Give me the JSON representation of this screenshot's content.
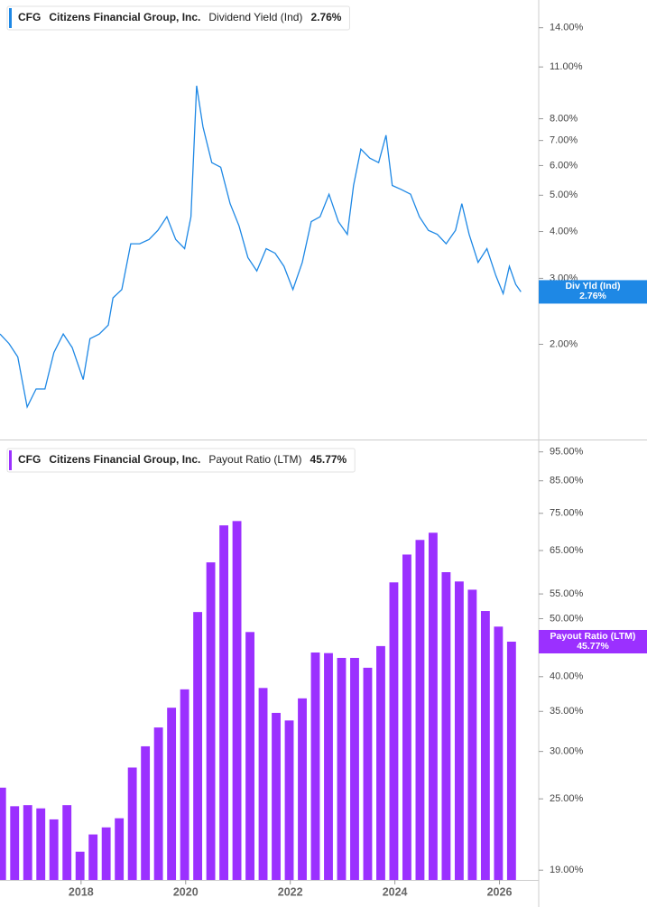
{
  "chart_data": [
    {
      "type": "line",
      "ticker": "CFG",
      "company": "Citizens Financial Group, Inc.",
      "log_scale": true,
      "series": [
        {
          "name": "Dividend Yield (Ind)",
          "short_name": "Div Yld (Ind)",
          "color": "#1e88e5",
          "x": [
            2016.45,
            2016.62,
            2016.79,
            2016.97,
            2017.14,
            2017.31,
            2017.48,
            2017.66,
            2017.83,
            2018.04,
            2018.17,
            2018.35,
            2018.52,
            2018.61,
            2018.78,
            2018.95,
            2019.12,
            2019.3,
            2019.47,
            2019.64,
            2019.81,
            2019.98,
            2020.1,
            2020.21,
            2020.33,
            2020.5,
            2020.67,
            2020.85,
            2021.02,
            2021.19,
            2021.36,
            2021.54,
            2021.71,
            2021.88,
            2022.05,
            2022.23,
            2022.4,
            2022.57,
            2022.74,
            2022.92,
            2023.09,
            2023.21,
            2023.35,
            2023.52,
            2023.69,
            2023.83,
            2023.95,
            2024.12,
            2024.3,
            2024.47,
            2024.64,
            2024.81,
            2024.98,
            2025.16,
            2025.28,
            2025.42,
            2025.59,
            2025.76,
            2025.93,
            2026.07,
            2026.19,
            2026.31,
            2026.41
          ],
          "values": [
            2.13,
            2.01,
            1.85,
            1.36,
            1.52,
            1.52,
            1.9,
            2.13,
            1.96,
            1.61,
            2.07,
            2.13,
            2.25,
            2.66,
            2.8,
            3.71,
            3.71,
            3.81,
            4.03,
            4.38,
            3.81,
            3.6,
            4.38,
            9.8,
            7.62,
            6.11,
            5.94,
            4.75,
            4.14,
            3.41,
            3.14,
            3.6,
            3.5,
            3.23,
            2.8,
            3.31,
            4.25,
            4.38,
            5.03,
            4.25,
            3.93,
            5.31,
            6.64,
            6.28,
            6.11,
            7.23,
            5.31,
            5.18,
            5.03,
            4.38,
            4.03,
            3.93,
            3.71,
            4.03,
            4.75,
            3.93,
            3.31,
            3.6,
            3.05,
            2.73,
            3.23,
            2.89,
            2.76
          ],
          "last_label": "2.76%"
        }
      ],
      "xlim": [
        2016.45,
        2026.75
      ],
      "ylim": [
        1.12,
        16.6
      ],
      "yticks": [
        {
          "value": 2,
          "label": "2.00%"
        },
        {
          "value": 3,
          "label": "3.00%"
        },
        {
          "value": 4,
          "label": "4.00%"
        },
        {
          "value": 5,
          "label": "5.00%"
        },
        {
          "value": 6,
          "label": "6.00%"
        },
        {
          "value": 7,
          "label": "7.00%"
        },
        {
          "value": 8,
          "label": "8.00%"
        },
        {
          "value": 11,
          "label": "11.00%"
        },
        {
          "value": 14,
          "label": "14.00%"
        }
      ]
    },
    {
      "type": "bar",
      "ticker": "CFG",
      "company": "Citizens Financial Group, Inc.",
      "log_scale": true,
      "series": [
        {
          "name": "Payout Ratio (LTM)",
          "short_name": "Payout Ratio (LTM)",
          "color": "#9b30ff",
          "x": [
            2016.48,
            2016.73,
            2016.98,
            2017.23,
            2017.48,
            2017.73,
            2017.98,
            2018.23,
            2018.48,
            2018.73,
            2018.98,
            2019.23,
            2019.48,
            2019.73,
            2019.98,
            2020.23,
            2020.48,
            2020.73,
            2020.98,
            2021.23,
            2021.48,
            2021.73,
            2021.98,
            2022.23,
            2022.48,
            2022.73,
            2022.98,
            2023.23,
            2023.48,
            2023.73,
            2023.98,
            2024.23,
            2024.48,
            2024.73,
            2024.98,
            2025.23,
            2025.48,
            2025.73,
            2025.98,
            2026.23
          ],
          "values": [
            26.1,
            24.3,
            24.4,
            24.1,
            23.1,
            24.4,
            20.4,
            21.8,
            22.4,
            23.2,
            28.2,
            30.6,
            32.9,
            35.5,
            38.1,
            51.3,
            62.1,
            71.6,
            72.8,
            47.5,
            38.3,
            34.8,
            33.8,
            36.8,
            43.9,
            43.8,
            43.0,
            43.0,
            41.4,
            45.0,
            57.5,
            64.0,
            67.7,
            69.6,
            59.8,
            57.7,
            55.9,
            51.5,
            48.5,
            45.77
          ],
          "last_label": "45.77%"
        }
      ],
      "xlim": [
        2016.45,
        2026.75
      ],
      "xticks": [
        2018,
        2020,
        2022,
        2024,
        2026
      ],
      "ylim": [
        18.3,
        98.6
      ],
      "yticks": [
        {
          "value": 19,
          "label": "19.00%"
        },
        {
          "value": 25,
          "label": "25.00%"
        },
        {
          "value": 30,
          "label": "30.00%"
        },
        {
          "value": 35,
          "label": "35.00%"
        },
        {
          "value": 40,
          "label": "40.00%"
        },
        {
          "value": 50,
          "label": "50.00%"
        },
        {
          "value": 55,
          "label": "55.00%"
        },
        {
          "value": 65,
          "label": "65.00%"
        },
        {
          "value": 75,
          "label": "75.00%"
        },
        {
          "value": 85,
          "label": "85.00%"
        },
        {
          "value": 95,
          "label": "95.00%"
        }
      ]
    }
  ]
}
